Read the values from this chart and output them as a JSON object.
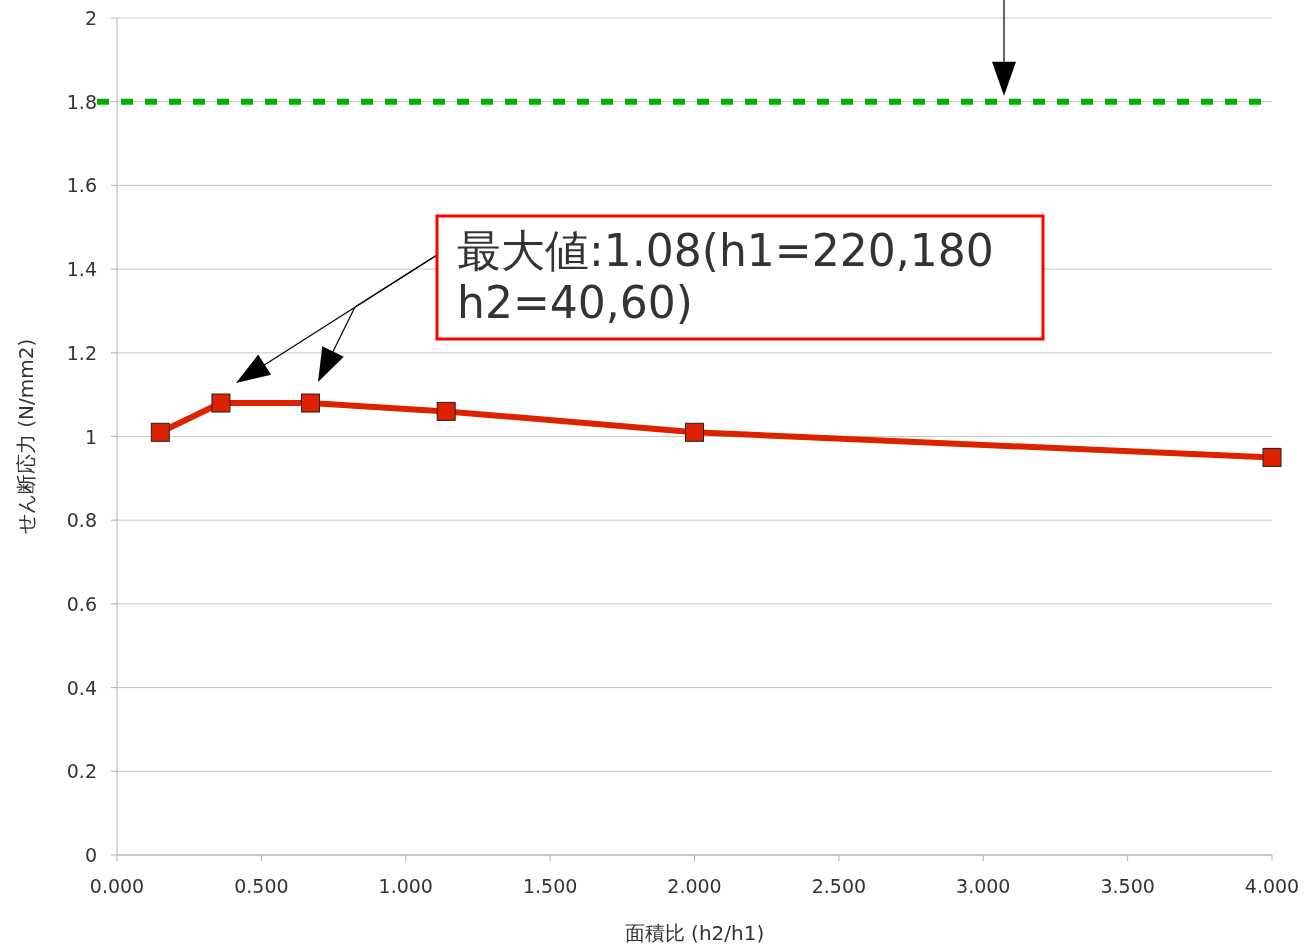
{
  "chart_data": {
    "type": "line",
    "xlabel": "面積比 (h2/h1)",
    "ylabel": "せん断応力 (N/mm2)",
    "x": [
      0.15,
      0.36,
      0.67,
      1.14,
      2.0,
      4.0
    ],
    "series": [
      {
        "color": "#dd2200",
        "values": [
          1.01,
          1.08,
          1.08,
          1.06,
          1.01,
          0.95
        ]
      }
    ],
    "xlim": [
      0,
      4
    ],
    "ylim": [
      0,
      2
    ],
    "xticks": [
      {
        "value": 0,
        "label": "0.000"
      },
      {
        "value": 0.5,
        "label": "0.500"
      },
      {
        "value": 1,
        "label": "1.000"
      },
      {
        "value": 1.5,
        "label": "1.500"
      },
      {
        "value": 2,
        "label": "2.000"
      },
      {
        "value": 2.5,
        "label": "2.500"
      },
      {
        "value": 3,
        "label": "3.000"
      },
      {
        "value": 3.5,
        "label": "3.500"
      },
      {
        "value": 4,
        "label": "4.000"
      }
    ],
    "yticks": [
      0,
      0.2,
      0.4,
      0.6,
      0.8,
      1,
      1.2,
      1.4,
      1.6,
      1.8,
      2
    ],
    "ref_lines": [
      {
        "axis": "y",
        "value": 1.8,
        "color": "#00b000",
        "line_style": "dashed"
      }
    ],
    "annotations": [
      "最大値:1.08(h1=220,180\nh2=40,60)"
    ],
    "grid": "y",
    "marker": "square",
    "line_style": "solid"
  }
}
